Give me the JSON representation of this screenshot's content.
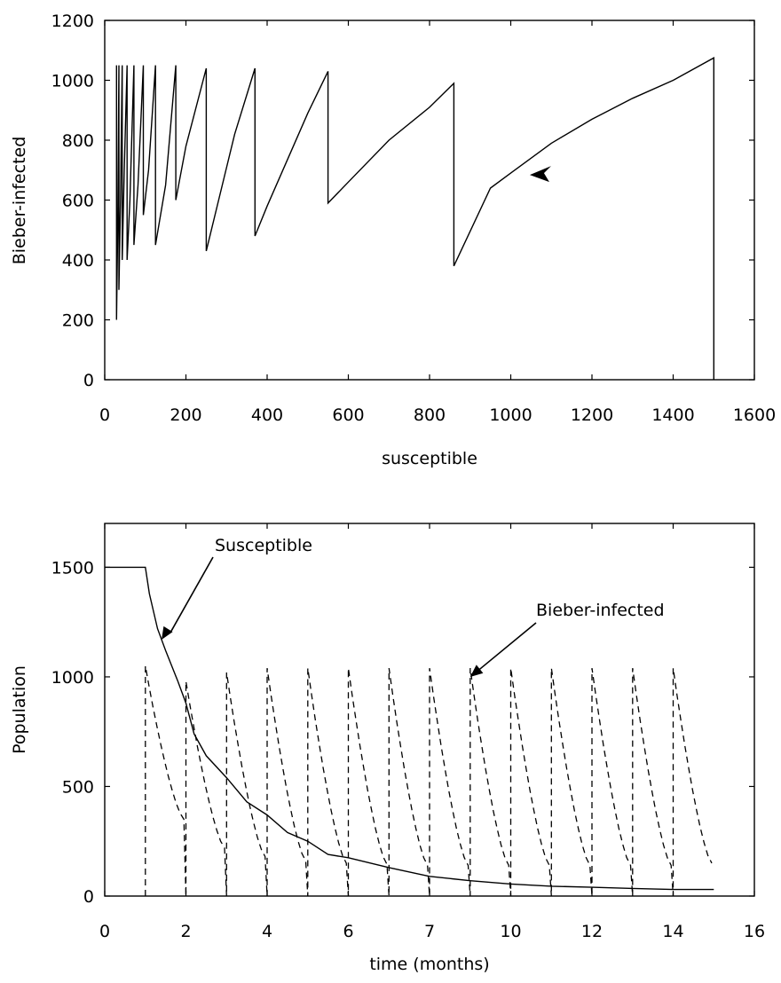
{
  "chart_data": [
    {
      "type": "line",
      "title": "",
      "xlabel": "susceptible",
      "ylabel": "Bieber-infected",
      "xlim": [
        0,
        1600
      ],
      "ylim": [
        0,
        1200
      ],
      "xticks": [
        "0",
        "200",
        "400",
        "600",
        "800",
        "1000",
        "1200",
        "1400",
        "1600"
      ],
      "yticks": [
        "0",
        "200",
        "400",
        "600",
        "800",
        "1000",
        "1200"
      ],
      "grid": false,
      "series": [
        {
          "style": "solid",
          "x": [
            1500,
            1500,
            1400,
            1300,
            1200,
            1100,
            1000,
            950,
            860,
            860,
            800,
            700,
            600,
            550,
            550,
            500,
            400,
            370,
            370,
            320,
            250,
            250,
            200,
            175,
            175,
            150,
            125,
            125,
            108,
            95,
            95,
            82,
            72,
            72,
            62,
            55,
            55,
            48,
            43,
            43,
            39,
            35,
            35,
            32,
            29,
            29
          ],
          "y": [
            0,
            1075,
            1000,
            940,
            870,
            790,
            690,
            640,
            380,
            990,
            910,
            800,
            660,
            590,
            1030,
            890,
            580,
            480,
            1040,
            820,
            430,
            1040,
            780,
            600,
            1050,
            650,
            450,
            1050,
            700,
            550,
            1050,
            650,
            450,
            1050,
            600,
            400,
            1050,
            700,
            400,
            1050,
            600,
            300,
            1050,
            500,
            200,
            1050
          ]
        }
      ],
      "annotations": [
        {
          "type": "arrow",
          "x": 1060,
          "y": 690
        }
      ]
    },
    {
      "type": "line",
      "title": "",
      "xlabel": "time (months)",
      "ylabel": "Population",
      "xlim": [
        0,
        16
      ],
      "ylim": [
        0,
        1700
      ],
      "xticks": [
        "0",
        "2",
        "4",
        "6",
        "7",
        "10",
        "12",
        "14",
        "16"
      ],
      "yticks": [
        "0",
        "500",
        "1000",
        "1500"
      ],
      "grid": false,
      "series": [
        {
          "name": "Susceptible",
          "style": "solid",
          "x": [
            0,
            1,
            1.1,
            1.3,
            1.5,
            1.8,
            2,
            2.2,
            2.5,
            3,
            3.5,
            4,
            4.5,
            5,
            5.5,
            6,
            7,
            8,
            9,
            10,
            11,
            12,
            13,
            14,
            15
          ],
          "y": [
            1500,
            1500,
            1380,
            1220,
            1120,
            980,
            880,
            740,
            640,
            540,
            430,
            370,
            290,
            250,
            190,
            175,
            130,
            90,
            70,
            55,
            45,
            40,
            35,
            30,
            30
          ]
        },
        {
          "name": "Bieber-infected",
          "style": "dashed",
          "peaks": [
            {
              "t": 1,
              "peak": 1050,
              "end": 350
            },
            {
              "t": 2,
              "peak": 980,
              "end": 220
            },
            {
              "t": 3,
              "peak": 1020,
              "end": 180
            },
            {
              "t": 4,
              "peak": 1040,
              "end": 160
            },
            {
              "t": 5,
              "peak": 1040,
              "end": 150
            },
            {
              "t": 6,
              "peak": 1040,
              "end": 145
            },
            {
              "t": 7,
              "peak": 1040,
              "end": 140
            },
            {
              "t": 8,
              "peak": 1040,
              "end": 140
            },
            {
              "t": 9,
              "peak": 1040,
              "end": 140
            },
            {
              "t": 10,
              "peak": 1040,
              "end": 140
            },
            {
              "t": 11,
              "peak": 1040,
              "end": 140
            },
            {
              "t": 12,
              "peak": 1040,
              "end": 140
            },
            {
              "t": 13,
              "peak": 1040,
              "end": 140
            },
            {
              "t": 14,
              "peak": 1040,
              "end": 150
            }
          ]
        }
      ],
      "annotations": [
        {
          "text": "Susceptible",
          "target": {
            "x": 1.4,
            "y": 1170
          }
        },
        {
          "text": "Bieber-infected",
          "target": {
            "x": 9,
            "y": 1000
          }
        }
      ]
    }
  ]
}
